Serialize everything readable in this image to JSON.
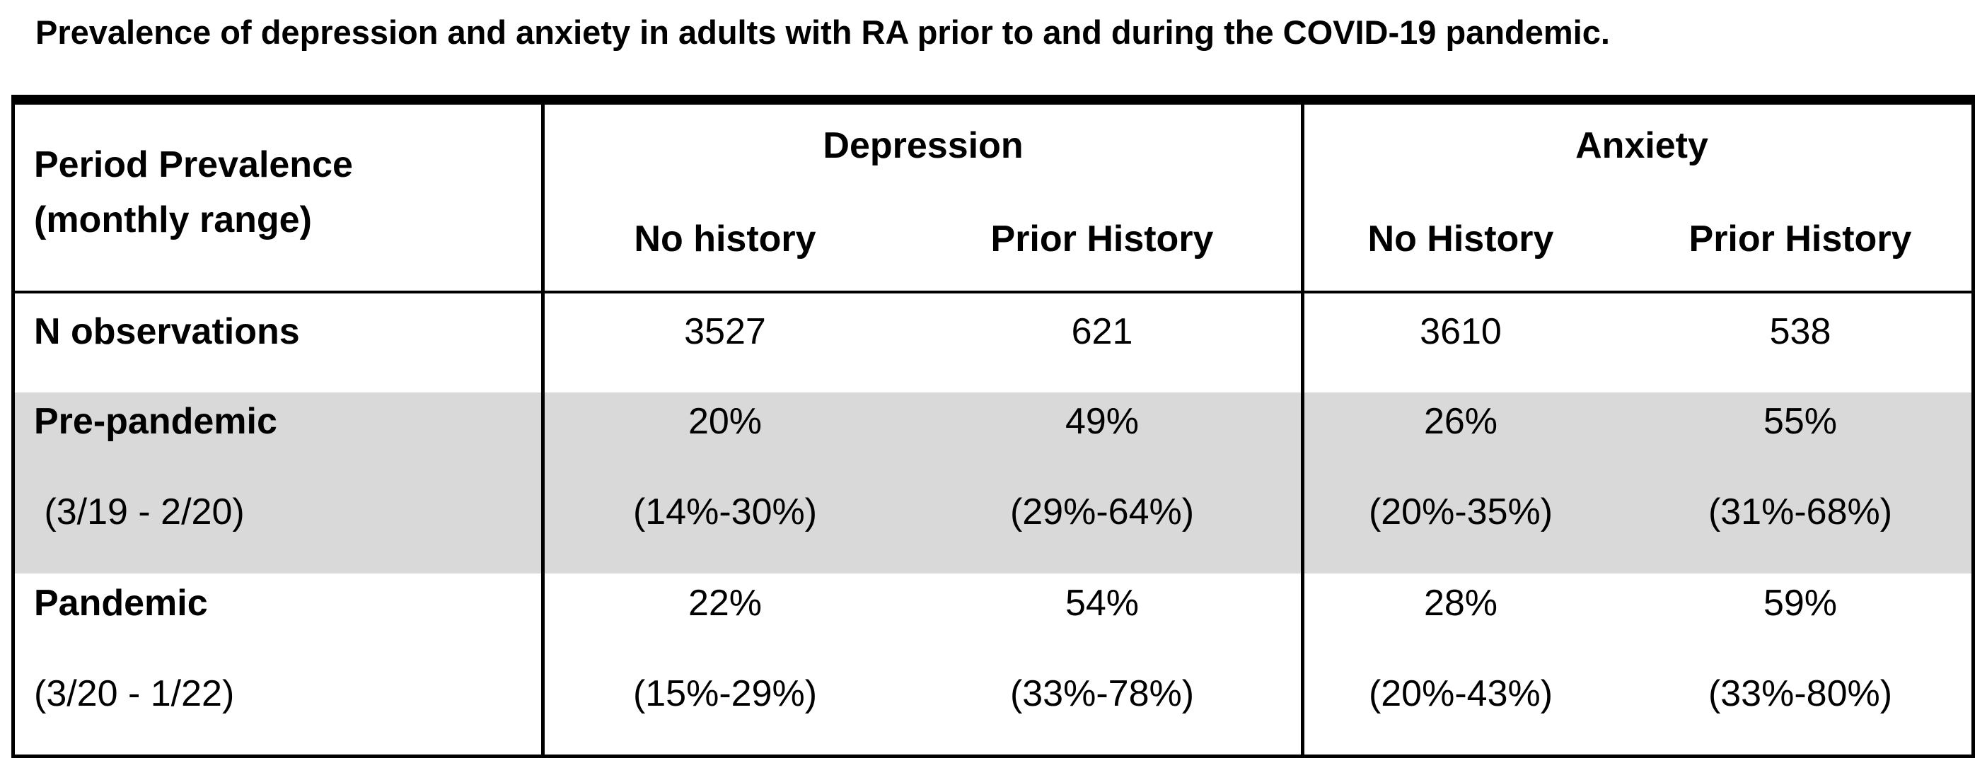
{
  "title": "Prevalence of depression and anxiety in adults with RA prior to and during the COVID-19 pandemic.",
  "table": {
    "corner_header": {
      "line1": "Period Prevalence",
      "line2": "(monthly range)"
    },
    "groups": [
      {
        "label": "Depression",
        "columns": [
          "No history",
          "Prior History"
        ]
      },
      {
        "label": "Anxiety",
        "columns": [
          "No History",
          "Prior History"
        ]
      }
    ],
    "rows": [
      {
        "label": "N observations",
        "sublabel": "",
        "values": [
          "3527",
          "621",
          "3610",
          "538"
        ],
        "ranges": [
          "",
          "",
          "",
          ""
        ],
        "shaded": false
      },
      {
        "label": "Pre-pandemic",
        "sublabel": " (3/19 - 2/20)",
        "values": [
          "20%",
          "49%",
          "26%",
          "55%"
        ],
        "ranges": [
          "(14%-30%)",
          "(29%-64%)",
          "(20%-35%)",
          "(31%-68%)"
        ],
        "shaded": true
      },
      {
        "label": "Pandemic",
        "sublabel": "(3/20 - 1/22)",
        "values": [
          "22%",
          "54%",
          "28%",
          "59%"
        ],
        "ranges": [
          "(15%-29%)",
          "(33%-78%)",
          "(20%-43%)",
          "(33%-80%)"
        ],
        "shaded": false
      }
    ],
    "colors": {
      "shaded_row": "#d9d9d9",
      "rule": "#000000"
    }
  }
}
